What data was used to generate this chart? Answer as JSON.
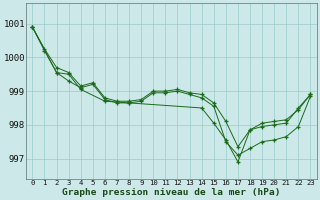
{
  "bg_color": "#cce8e8",
  "plot_bg_color": "#cce8e8",
  "grid_color": "#99cccc",
  "line_color": "#1a6b1a",
  "xlabel": "Graphe pression niveau de la mer (hPa)",
  "xlim": [
    -0.5,
    23.5
  ],
  "ylim": [
    996.4,
    1001.6
  ],
  "yticks": [
    997,
    998,
    999,
    1000,
    1001
  ],
  "xticks": [
    0,
    1,
    2,
    3,
    4,
    5,
    6,
    7,
    8,
    9,
    10,
    11,
    12,
    13,
    14,
    15,
    16,
    17,
    18,
    19,
    20,
    21,
    22,
    23
  ],
  "series1_x": [
    0,
    1,
    2,
    3,
    4,
    5,
    6,
    7,
    8,
    9,
    10,
    11,
    12,
    13,
    14,
    15,
    16,
    17,
    18,
    19,
    20,
    21,
    22,
    23
  ],
  "series1_y": [
    1000.9,
    1000.25,
    999.7,
    999.55,
    999.15,
    999.25,
    998.8,
    998.7,
    998.7,
    998.75,
    999.0,
    999.0,
    999.05,
    998.95,
    998.9,
    998.65,
    998.1,
    997.35,
    997.85,
    998.05,
    998.1,
    998.15,
    998.45,
    998.9
  ],
  "series2_x": [
    0,
    2,
    3,
    4,
    6,
    8,
    14,
    15,
    16,
    17,
    18,
    19,
    20,
    21,
    22,
    23
  ],
  "series2_y": [
    1000.9,
    999.55,
    999.5,
    999.05,
    998.7,
    998.65,
    998.5,
    998.05,
    997.55,
    996.9,
    997.85,
    997.95,
    998.0,
    998.05,
    998.5,
    998.9
  ],
  "series3_x": [
    0,
    1,
    2,
    3,
    4,
    5,
    6,
    7,
    8,
    9,
    10,
    11,
    12,
    13,
    14,
    15,
    16,
    17,
    18,
    19,
    20,
    21,
    22,
    23
  ],
  "series3_y": [
    1000.9,
    1000.2,
    999.55,
    999.3,
    999.1,
    999.2,
    998.75,
    998.65,
    998.65,
    998.7,
    998.95,
    998.95,
    999.0,
    998.9,
    998.8,
    998.55,
    997.5,
    997.1,
    997.3,
    997.5,
    997.55,
    997.65,
    997.95,
    998.85
  ]
}
